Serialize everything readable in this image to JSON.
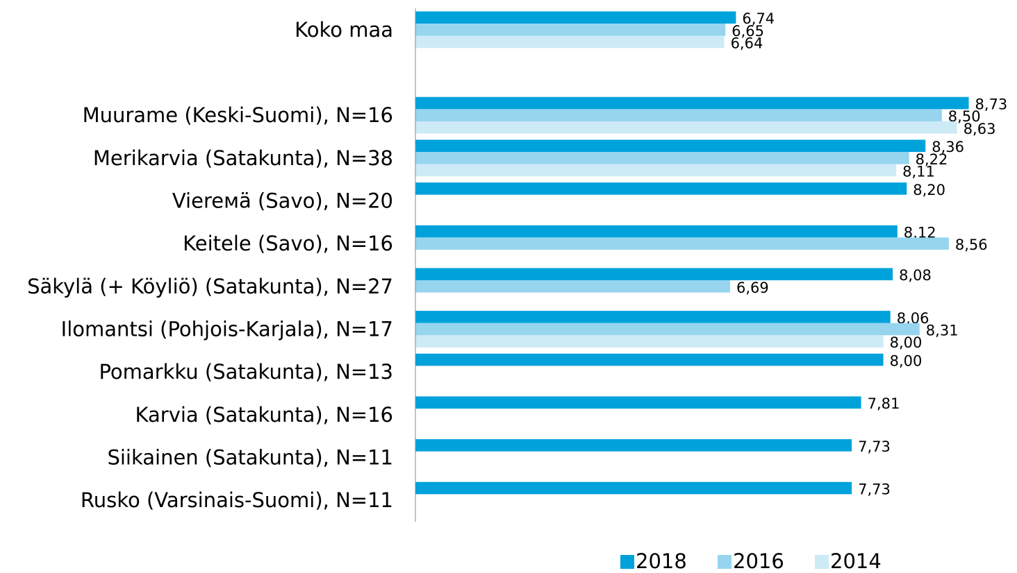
{
  "chart_data": {
    "type": "hbar",
    "categories": [
      "Koko maa",
      null,
      "Muurame (Keski-Suomi), N=16",
      "Merikarvia (Satakunta), N=38",
      "Viereмä (Savo), N=20",
      "Keitele (Savo), N=16",
      "Säkylä (+ Köyliö) (Satakunta), N=27",
      "Ilomantsi (Pohjois-Karjala), N=17",
      "Pomarkku (Satakunta), N=13",
      "Karvia (Satakunta), N=16",
      "Siikainen (Satakunta), N=11",
      "Rusko (Varsinais-Suomi), N=11"
    ],
    "series": [
      {
        "name": "2018",
        "color": "#00a2db",
        "values": [
          6.74,
          null,
          8.73,
          8.36,
          8.2,
          8.12,
          8.08,
          8.06,
          8.0,
          7.81,
          7.73,
          7.73
        ],
        "value_labels": [
          "6,74",
          null,
          "8,73",
          "8,36",
          "8,20",
          "8,12",
          "8,08",
          "8,06",
          "8,00",
          "7,81",
          "7,73",
          "7,73"
        ]
      },
      {
        "name": "2016",
        "color": "#97d5ef",
        "values": [
          6.65,
          null,
          8.5,
          8.22,
          null,
          8.56,
          6.69,
          8.31,
          null,
          null,
          null,
          null
        ],
        "value_labels": [
          "6,65",
          null,
          "8,50",
          "8,22",
          null,
          "8,56",
          "6,69",
          "8,31",
          null,
          null,
          null,
          null
        ]
      },
      {
        "name": "2014",
        "color": "#cdeaf7",
        "values": [
          6.64,
          null,
          8.63,
          8.11,
          null,
          null,
          null,
          8.0,
          null,
          null,
          null,
          null
        ],
        "value_labels": [
          "6,64",
          null,
          "8,63",
          "8,11",
          null,
          null,
          null,
          "8,00",
          null,
          null,
          null,
          null
        ]
      }
    ],
    "xlim": [
      4,
      9
    ],
    "legend": "bottom"
  }
}
